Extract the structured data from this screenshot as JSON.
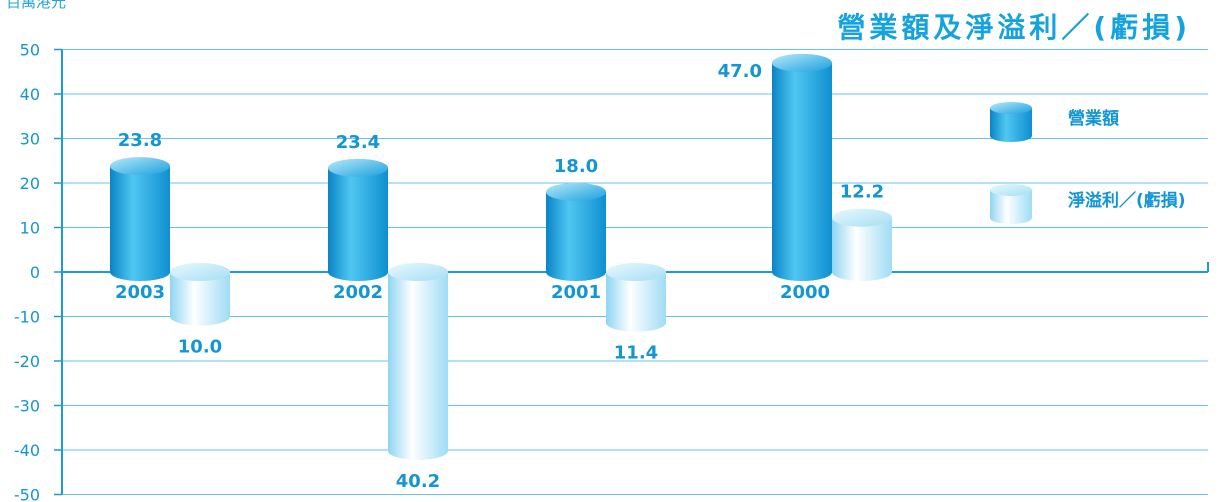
{
  "unit_label": "百萬港元",
  "chart_data": {
    "type": "bar",
    "title": "營業額及淨溢利／(虧損)",
    "categories": [
      "2003",
      "2002",
      "2001",
      "2000"
    ],
    "series": [
      {
        "name": "營業額",
        "values": [
          23.8,
          23.4,
          18.0,
          47.0
        ],
        "labels": [
          "23.8",
          "23.4",
          "18.0",
          "47.0"
        ]
      },
      {
        "name": "淨溢利／(虧損)",
        "values": [
          -10.0,
          -40.2,
          -11.4,
          12.2
        ],
        "labels": [
          "10.0",
          "40.2",
          "11.4",
          "12.2"
        ]
      }
    ],
    "ylim": [
      -50,
      50
    ],
    "yticks": [
      "50",
      "40",
      "30",
      "20",
      "10",
      "0",
      "-10",
      "-20",
      "-30",
      "-40",
      "-50"
    ],
    "grid": true,
    "legend_position": "right",
    "colors": {
      "series_dark": "#1ea6dc",
      "series_light": "#a7e0f5",
      "axis": "#1e9ad6",
      "grid": "#66c4ea",
      "text": "#1496d4"
    }
  }
}
